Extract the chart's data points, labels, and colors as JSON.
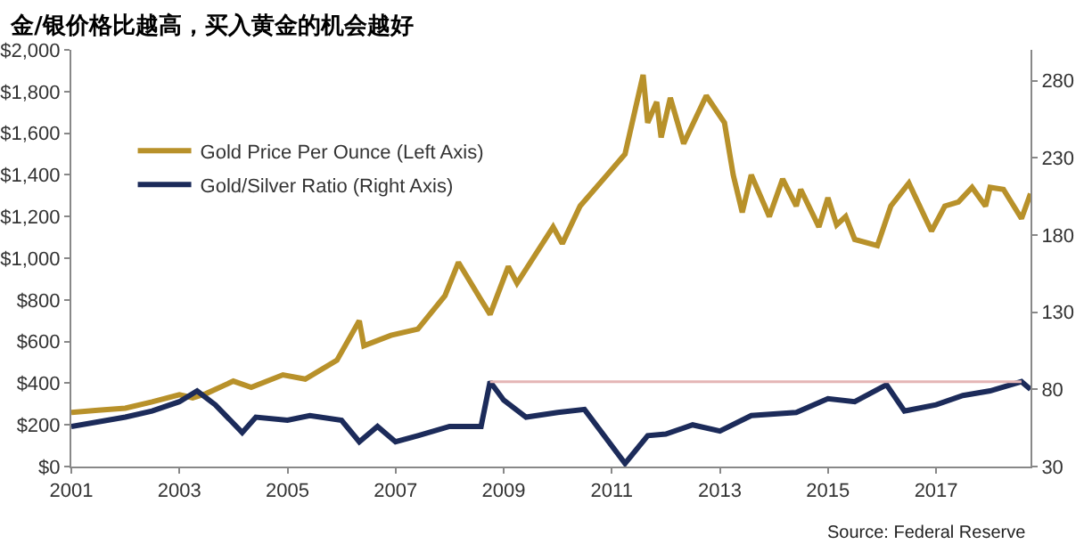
{
  "chart_data": {
    "type": "line",
    "title": "金/银价格比越高，买入黄金的机会越好",
    "series": [
      {
        "name": "Gold Price Per Ounce (Left Axis)",
        "color": "#b8912a",
        "x": [
          "2001-01",
          "2001-07",
          "2002-01",
          "2002-07",
          "2003-01",
          "2003-04",
          "2003-07",
          "2004-01",
          "2004-05",
          "2004-12",
          "2005-05",
          "2005-12",
          "2006-05",
          "2006-06",
          "2006-12",
          "2007-06",
          "2007-12",
          "2008-03",
          "2008-08",
          "2008-10",
          "2009-02",
          "2009-04",
          "2009-12",
          "2010-02",
          "2010-06",
          "2010-12",
          "2011-04",
          "2011-08",
          "2011-09",
          "2011-11",
          "2011-12",
          "2012-02",
          "2012-05",
          "2012-10",
          "2013-02",
          "2013-04",
          "2013-06",
          "2013-08",
          "2013-12",
          "2014-03",
          "2014-06",
          "2014-07",
          "2014-11",
          "2015-01",
          "2015-03",
          "2015-05",
          "2015-07",
          "2015-12",
          "2016-03",
          "2016-07",
          "2016-12",
          "2017-03",
          "2017-06",
          "2017-09",
          "2017-12",
          "2018-01",
          "2018-04",
          "2018-08",
          "2018-10"
        ],
        "values": [
          260,
          270,
          280,
          310,
          345,
          330,
          350,
          410,
          380,
          440,
          420,
          510,
          700,
          580,
          630,
          660,
          820,
          980,
          800,
          730,
          960,
          880,
          1150,
          1070,
          1250,
          1400,
          1500,
          1880,
          1650,
          1750,
          1580,
          1770,
          1550,
          1780,
          1650,
          1400,
          1220,
          1400,
          1200,
          1380,
          1250,
          1330,
          1150,
          1290,
          1160,
          1200,
          1090,
          1060,
          1250,
          1360,
          1130,
          1250,
          1270,
          1340,
          1250,
          1340,
          1330,
          1190,
          1310
        ]
      },
      {
        "name": "Gold/Silver Ratio (Right Axis)",
        "color": "#1c2b5a",
        "axis": "y2",
        "x": [
          "2001-01",
          "2002-01",
          "2002-07",
          "2003-01",
          "2003-05",
          "2003-09",
          "2004-03",
          "2004-06",
          "2005-01",
          "2005-06",
          "2006-01",
          "2006-05",
          "2006-09",
          "2007-01",
          "2007-06",
          "2008-01",
          "2008-08",
          "2008-10",
          "2009-01",
          "2009-06",
          "2010-01",
          "2010-07",
          "2011-04",
          "2011-09",
          "2012-01",
          "2012-07",
          "2013-01",
          "2013-08",
          "2014-06",
          "2015-01",
          "2015-07",
          "2016-02",
          "2016-06",
          "2017-01",
          "2017-07",
          "2018-01",
          "2018-08",
          "2018-10"
        ],
        "values": [
          56,
          62,
          66,
          72,
          79,
          70,
          52,
          62,
          60,
          63,
          60,
          46,
          56,
          46,
          50,
          56,
          56,
          85,
          73,
          62,
          65,
          67,
          32,
          50,
          51,
          57,
          53,
          63,
          65,
          74,
          72,
          83,
          66,
          70,
          76,
          79,
          85,
          80
        ]
      },
      {
        "type": "line",
        "color": "#e4b5b5",
        "axis": "y2",
        "x": [
          "2008-10",
          "2018-08"
        ],
        "values": [
          85,
          85
        ]
      }
    ],
    "xlim": [
      "2001-01",
      "2018-10"
    ],
    "xticks": [
      "2001",
      "2003",
      "2005",
      "2007",
      "2009",
      "2011",
      "2013",
      "2015",
      "2017"
    ],
    "ylim": [
      0,
      2000
    ],
    "yticks": [
      {
        "value": 0,
        "label": "$0"
      },
      {
        "value": 200,
        "label": "$200"
      },
      {
        "value": 400,
        "label": "$400"
      },
      {
        "value": 600,
        "label": "$600"
      },
      {
        "value": 800,
        "label": "$800"
      },
      {
        "value": 1000,
        "label": "$1,000"
      },
      {
        "value": 1200,
        "label": "$1,200"
      },
      {
        "value": 1400,
        "label": "$1,400"
      },
      {
        "value": 1600,
        "label": "$1,600"
      },
      {
        "value": 1800,
        "label": "$1,800"
      },
      {
        "value": 2000,
        "label": "$2,000"
      }
    ],
    "y2lim": [
      30,
      300
    ],
    "y2ticks": [
      30,
      80,
      130,
      180,
      230,
      280
    ],
    "legend": "top left",
    "grid": false,
    "annotations": [
      "Source: Federal Reserve"
    ]
  }
}
